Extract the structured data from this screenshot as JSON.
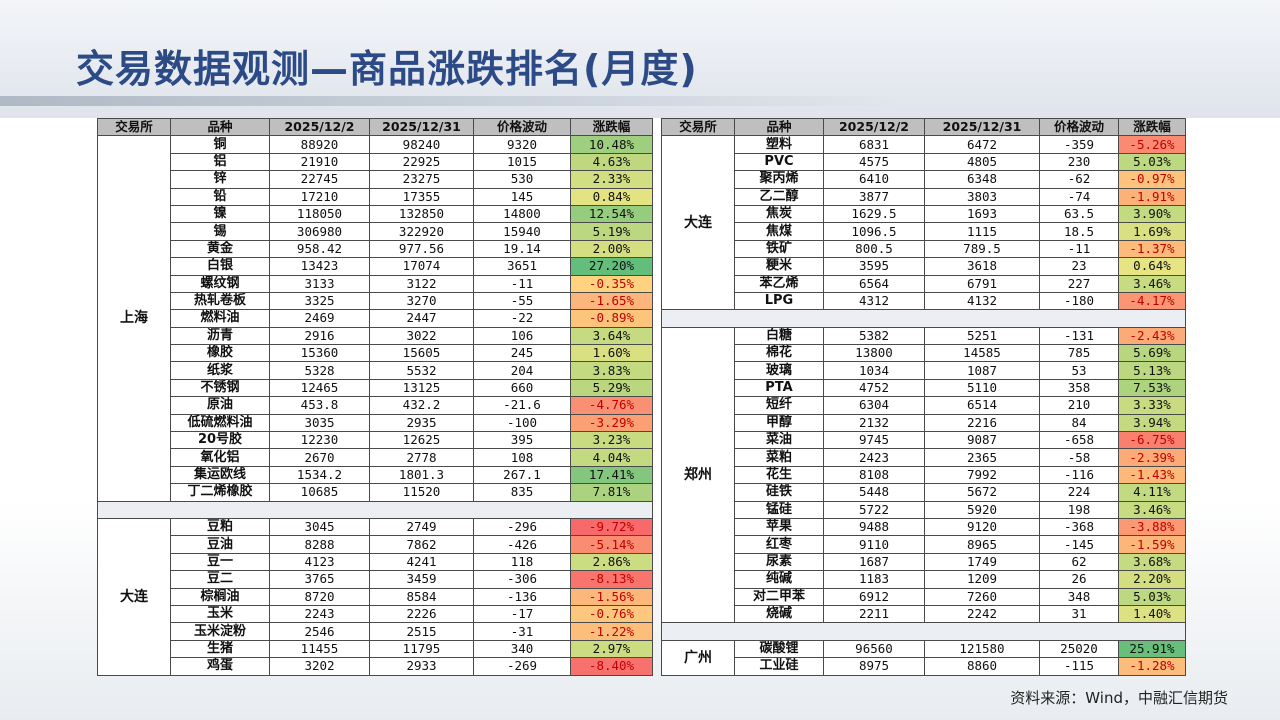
{
  "title": "交易数据观测—商品涨跌排名(月度)",
  "source": "资料来源：Wind，中融汇信期货",
  "colors": {
    "title": "#2b4a86",
    "header_bg": "#bfbfbf",
    "scale_min": "#f8696b",
    "scale_mid": "#ffeb84",
    "scale_max": "#63be7b"
  },
  "headers": [
    "交易所",
    "品种",
    "2025/12/2",
    "2025/12/31",
    "价格波动",
    "涨跌幅"
  ],
  "left_groups": [
    {
      "exchange": "上海",
      "rows": [
        [
          "铜",
          "88920",
          "98240",
          "9320",
          "10.48%",
          10.48
        ],
        [
          "铝",
          "21910",
          "22925",
          "1015",
          "4.63%",
          4.63
        ],
        [
          "锌",
          "22745",
          "23275",
          "530",
          "2.33%",
          2.33
        ],
        [
          "铅",
          "17210",
          "17355",
          "145",
          "0.84%",
          0.84
        ],
        [
          "镍",
          "118050",
          "132850",
          "14800",
          "12.54%",
          12.54
        ],
        [
          "锡",
          "306980",
          "322920",
          "15940",
          "5.19%",
          5.19
        ],
        [
          "黄金",
          "958.42",
          "977.56",
          "19.14",
          "2.00%",
          2.0
        ],
        [
          "白银",
          "13423",
          "17074",
          "3651",
          "27.20%",
          27.2
        ],
        [
          "螺纹钢",
          "3133",
          "3122",
          "-11",
          "-0.35%",
          -0.35
        ],
        [
          "热轧卷板",
          "3325",
          "3270",
          "-55",
          "-1.65%",
          -1.65
        ],
        [
          "燃料油",
          "2469",
          "2447",
          "-22",
          "-0.89%",
          -0.89
        ],
        [
          "沥青",
          "2916",
          "3022",
          "106",
          "3.64%",
          3.64
        ],
        [
          "橡胶",
          "15360",
          "15605",
          "245",
          "1.60%",
          1.6
        ],
        [
          "纸浆",
          "5328",
          "5532",
          "204",
          "3.83%",
          3.83
        ],
        [
          "不锈钢",
          "12465",
          "13125",
          "660",
          "5.29%",
          5.29
        ],
        [
          "原油",
          "453.8",
          "432.2",
          "-21.6",
          "-4.76%",
          -4.76
        ],
        [
          "低硫燃料油",
          "3035",
          "2935",
          "-100",
          "-3.29%",
          -3.29
        ],
        [
          "20号胶",
          "12230",
          "12625",
          "395",
          "3.23%",
          3.23
        ],
        [
          "氧化铝",
          "2670",
          "2778",
          "108",
          "4.04%",
          4.04
        ],
        [
          "集运欧线",
          "1534.2",
          "1801.3",
          "267.1",
          "17.41%",
          17.41
        ],
        [
          "丁二烯橡胶",
          "10685",
          "11520",
          "835",
          "7.81%",
          7.81
        ]
      ]
    },
    {
      "exchange": "大连",
      "rows": [
        [
          "豆粕",
          "3045",
          "2749",
          "-296",
          "-9.72%",
          -9.72
        ],
        [
          "豆油",
          "8288",
          "7862",
          "-426",
          "-5.14%",
          -5.14
        ],
        [
          "豆一",
          "4123",
          "4241",
          "118",
          "2.86%",
          2.86
        ],
        [
          "豆二",
          "3765",
          "3459",
          "-306",
          "-8.13%",
          -8.13
        ],
        [
          "棕榈油",
          "8720",
          "8584",
          "-136",
          "-1.56%",
          -1.56
        ],
        [
          "玉米",
          "2243",
          "2226",
          "-17",
          "-0.76%",
          -0.76
        ],
        [
          "玉米淀粉",
          "2546",
          "2515",
          "-31",
          "-1.22%",
          -1.22
        ],
        [
          "生猪",
          "11455",
          "11795",
          "340",
          "2.97%",
          2.97
        ],
        [
          "鸡蛋",
          "3202",
          "2933",
          "-269",
          "-8.40%",
          -8.4
        ]
      ]
    }
  ],
  "right_groups": [
    {
      "exchange": "大连",
      "rows": [
        [
          "塑料",
          "6831",
          "6472",
          "-359",
          "-5.26%",
          -5.26
        ],
        [
          "PVC",
          "4575",
          "4805",
          "230",
          "5.03%",
          5.03
        ],
        [
          "聚丙烯",
          "6410",
          "6348",
          "-62",
          "-0.97%",
          -0.97
        ],
        [
          "乙二醇",
          "3877",
          "3803",
          "-74",
          "-1.91%",
          -1.91
        ],
        [
          "焦炭",
          "1629.5",
          "1693",
          "63.5",
          "3.90%",
          3.9
        ],
        [
          "焦煤",
          "1096.5",
          "1115",
          "18.5",
          "1.69%",
          1.69
        ],
        [
          "铁矿",
          "800.5",
          "789.5",
          "-11",
          "-1.37%",
          -1.37
        ],
        [
          "粳米",
          "3595",
          "3618",
          "23",
          "0.64%",
          0.64
        ],
        [
          "苯乙烯",
          "6564",
          "6791",
          "227",
          "3.46%",
          3.46
        ],
        [
          "LPG",
          "4312",
          "4132",
          "-180",
          "-4.17%",
          -4.17
        ]
      ]
    },
    {
      "exchange": "郑州",
      "rows": [
        [
          "白糖",
          "5382",
          "5251",
          "-131",
          "-2.43%",
          -2.43
        ],
        [
          "棉花",
          "13800",
          "14585",
          "785",
          "5.69%",
          5.69
        ],
        [
          "玻璃",
          "1034",
          "1087",
          "53",
          "5.13%",
          5.13
        ],
        [
          "PTA",
          "4752",
          "5110",
          "358",
          "7.53%",
          7.53
        ],
        [
          "短纤",
          "6304",
          "6514",
          "210",
          "3.33%",
          3.33
        ],
        [
          "甲醇",
          "2132",
          "2216",
          "84",
          "3.94%",
          3.94
        ],
        [
          "菜油",
          "9745",
          "9087",
          "-658",
          "-6.75%",
          -6.75
        ],
        [
          "菜粕",
          "2423",
          "2365",
          "-58",
          "-2.39%",
          -2.39
        ],
        [
          "花生",
          "8108",
          "7992",
          "-116",
          "-1.43%",
          -1.43
        ],
        [
          "硅铁",
          "5448",
          "5672",
          "224",
          "4.11%",
          4.11
        ],
        [
          "锰硅",
          "5722",
          "5920",
          "198",
          "3.46%",
          3.46
        ],
        [
          "苹果",
          "9488",
          "9120",
          "-368",
          "-3.88%",
          -3.88
        ],
        [
          "红枣",
          "9110",
          "8965",
          "-145",
          "-1.59%",
          -1.59
        ],
        [
          "尿素",
          "1687",
          "1749",
          "62",
          "3.68%",
          3.68
        ],
        [
          "纯碱",
          "1183",
          "1209",
          "26",
          "2.20%",
          2.2
        ],
        [
          "对二甲苯",
          "6912",
          "7260",
          "348",
          "5.03%",
          5.03
        ],
        [
          "烧碱",
          "2211",
          "2242",
          "31",
          "1.40%",
          1.4
        ]
      ]
    },
    {
      "exchange": "广州",
      "rows": [
        [
          "碳酸锂",
          "96560",
          "121580",
          "25020",
          "25.91%",
          25.91
        ],
        [
          "工业硅",
          "8975",
          "8860",
          "-115",
          "-1.28%",
          -1.28
        ]
      ]
    }
  ]
}
